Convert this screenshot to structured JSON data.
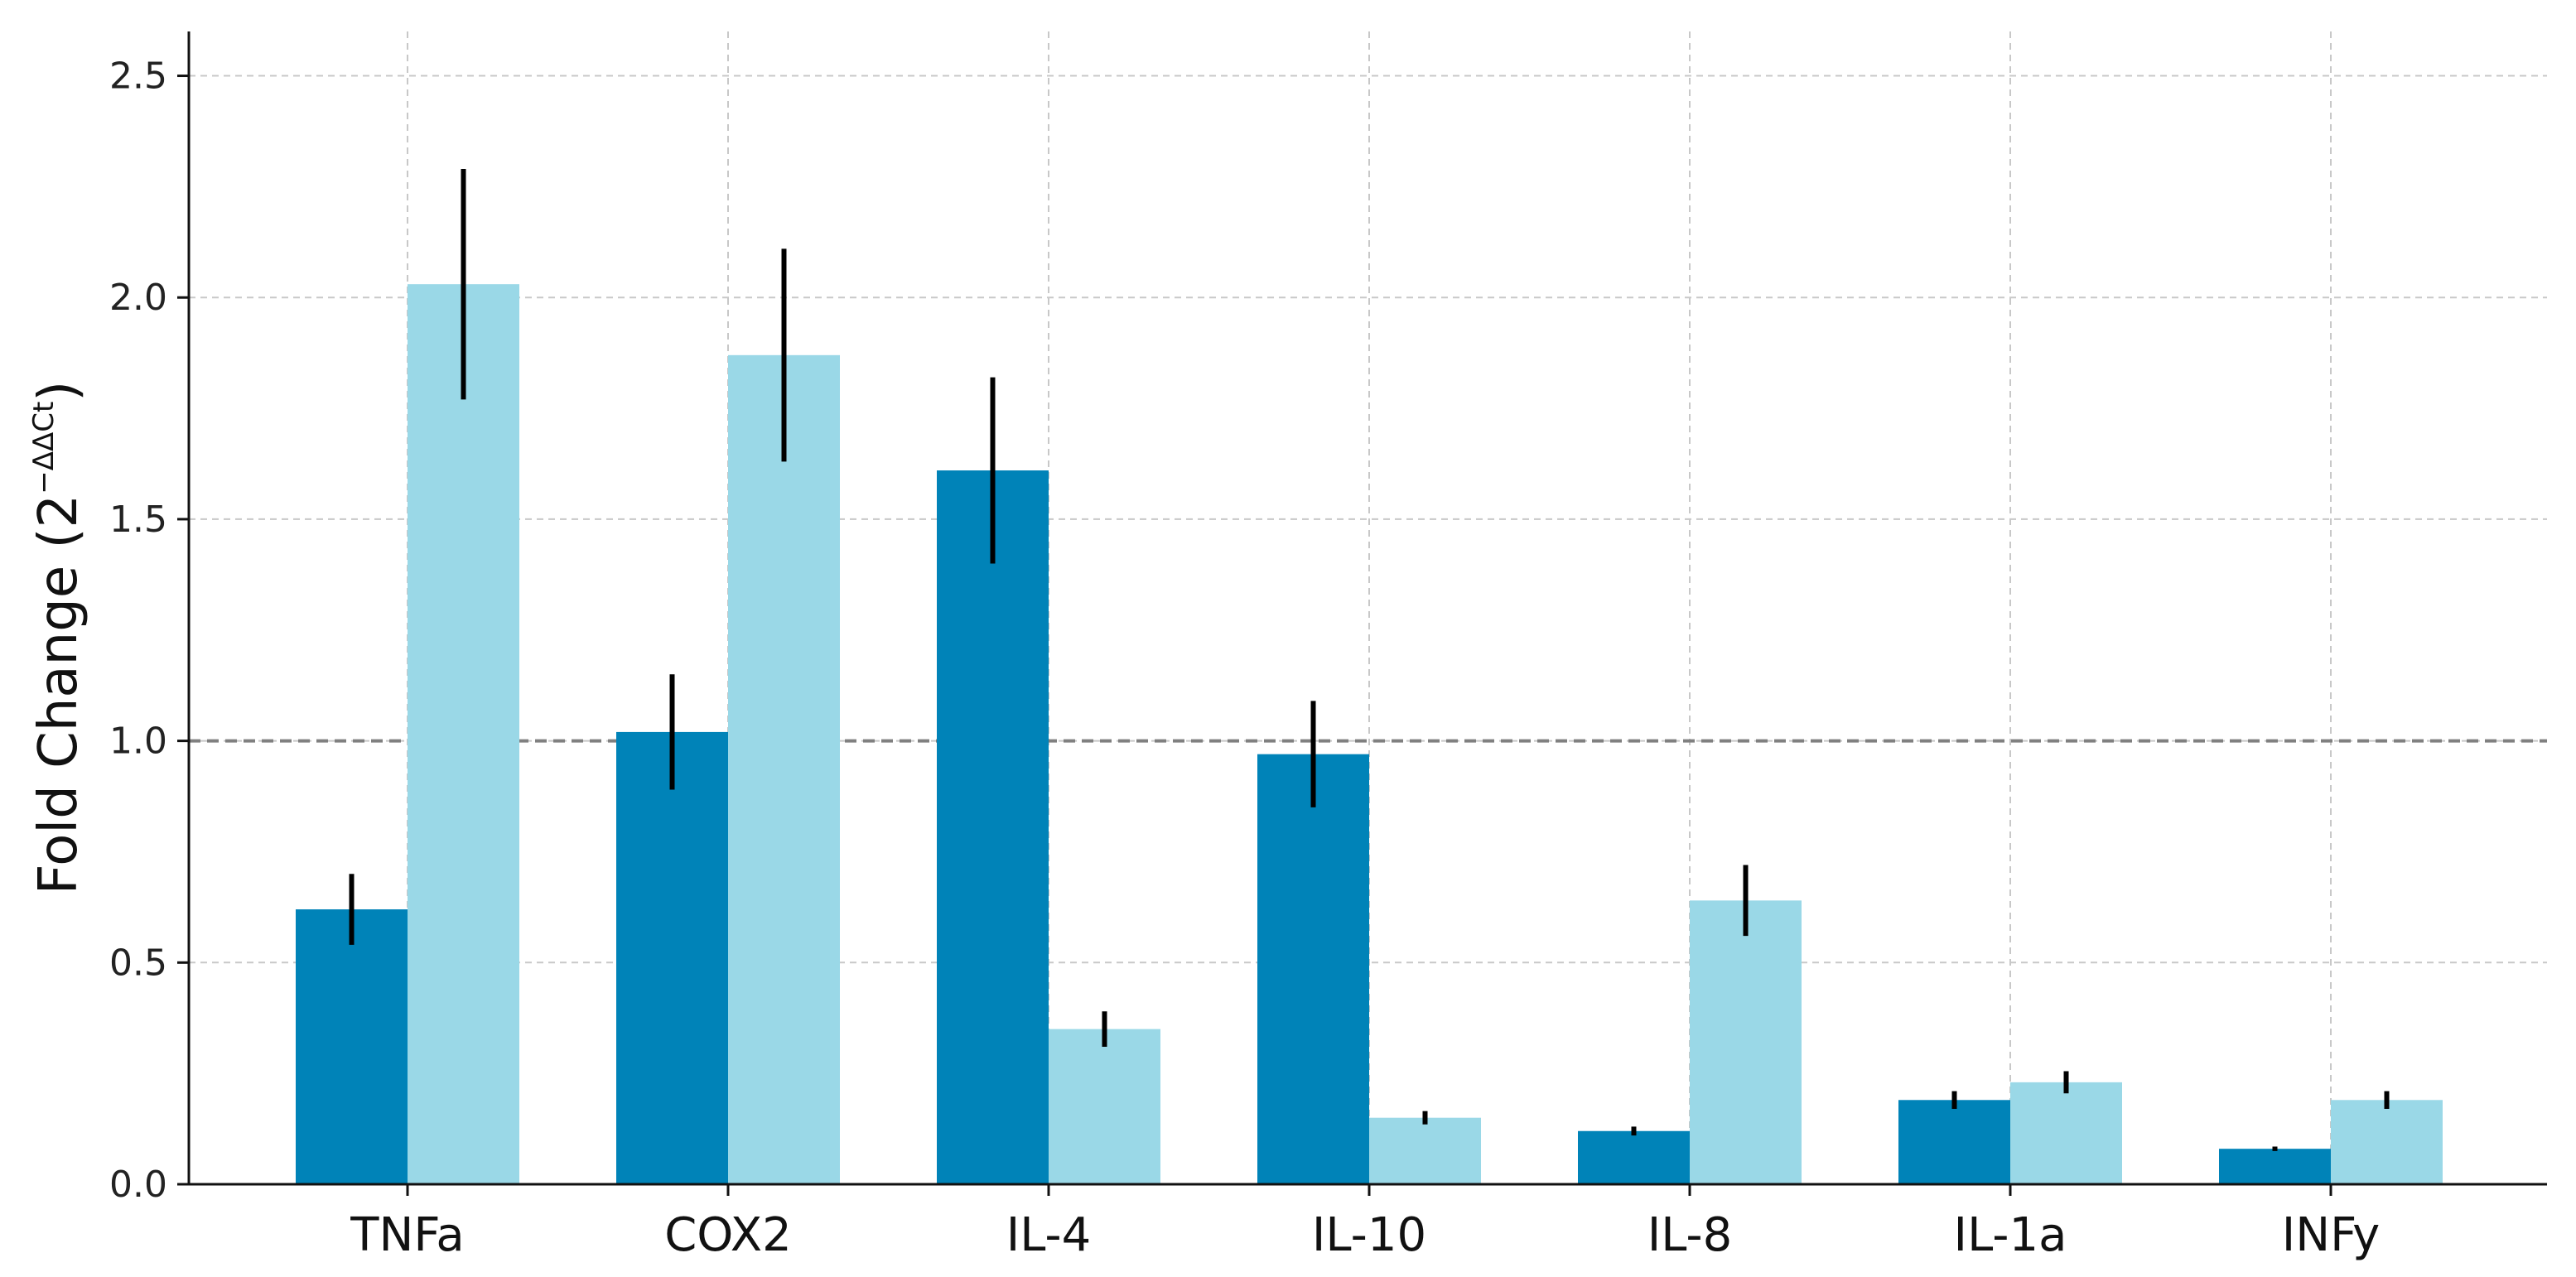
{
  "chart_data": {
    "type": "bar",
    "categories": [
      "TNFa",
      "COX2",
      "IL-4",
      "IL-10",
      "IL-8",
      "IL-1a",
      "INFy"
    ],
    "series": [
      {
        "values": [
          0.62,
          1.02,
          1.61,
          0.97,
          0.12,
          0.19,
          0.08
        ],
        "errors": [
          0.08,
          0.13,
          0.21,
          0.12,
          0.01,
          0.02,
          0.005
        ],
        "color": "#0083B8"
      },
      {
        "values": [
          2.03,
          1.87,
          0.35,
          0.15,
          0.64,
          0.23,
          0.19
        ],
        "errors": [
          0.26,
          0.24,
          0.04,
          0.015,
          0.08,
          0.025,
          0.02
        ],
        "color": "#9AD8E7"
      }
    ],
    "title": "",
    "xlabel": "",
    "ylabel": "Fold Change (2",
    "ylabel_superscript": "−ΔΔCt",
    "ylabel_close": ")",
    "ylim": [
      0,
      2.6
    ],
    "yticks": [
      "0.0",
      "0.5",
      "1.0",
      "1.5",
      "2.0",
      "2.5"
    ],
    "reference_line": 1.0,
    "grid": true,
    "legend": false
  }
}
